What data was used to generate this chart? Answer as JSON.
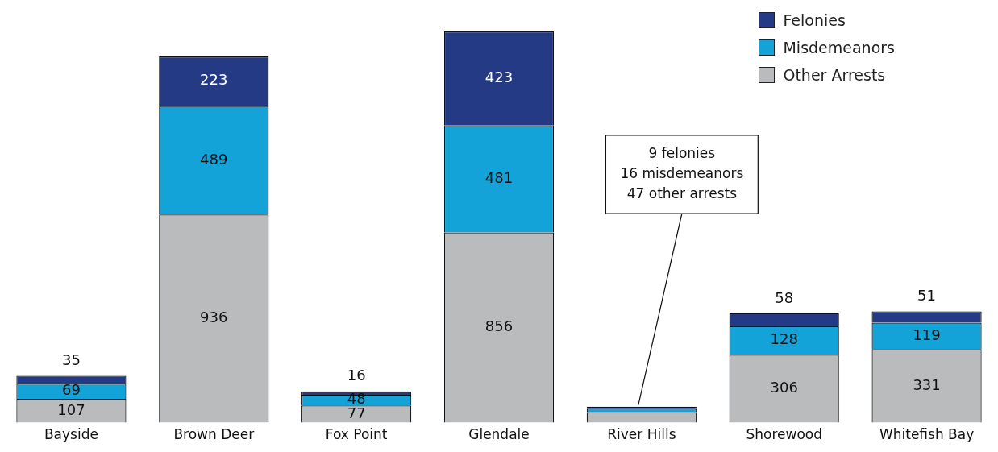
{
  "chart_data": {
    "type": "bar",
    "stacked": true,
    "categories": [
      "Bayside",
      "Brown Deer",
      "Fox Point",
      "Glendale",
      "River Hills",
      "Shorewood",
      "Whitefish Bay"
    ],
    "series": [
      {
        "name": "Other Arrests",
        "color": "#b9bbbc",
        "values": [
          107,
          936,
          77,
          856,
          47,
          306,
          331
        ],
        "value_labels": [
          "107",
          "936",
          "77",
          "856",
          null,
          "306",
          "331"
        ]
      },
      {
        "name": "Misdemeanors",
        "color": "#14a3d9",
        "values": [
          69,
          489,
          48,
          481,
          16,
          128,
          119
        ],
        "value_labels": [
          "69",
          "489",
          "48",
          "481",
          null,
          "128",
          "119"
        ]
      },
      {
        "name": "Felonies",
        "color": "#253a84",
        "values": [
          35,
          223,
          16,
          423,
          9,
          58,
          51
        ],
        "value_labels": [
          "35",
          "223",
          "16",
          "423",
          null,
          "58",
          "51"
        ]
      }
    ],
    "tick_labels": "x",
    "grid": false,
    "legend": "top right",
    "annotations": [
      {
        "text": "9 felonies\n16 misdemeanors\n47 other arrests",
        "x": "River Hills",
        "y": 72
      }
    ]
  }
}
